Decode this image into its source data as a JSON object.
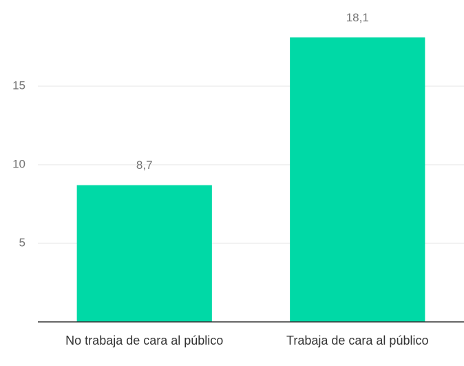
{
  "chart_data": {
    "type": "bar",
    "categories": [
      "No trabaja de cara al público",
      "Trabaja de cara al público"
    ],
    "values": [
      8.7,
      18.1
    ],
    "value_labels": [
      "8,7",
      "18,1"
    ],
    "color": "#00d9a6",
    "ylim": [
      0,
      20
    ],
    "yticks": [
      5,
      10,
      15
    ],
    "grid": true
  }
}
